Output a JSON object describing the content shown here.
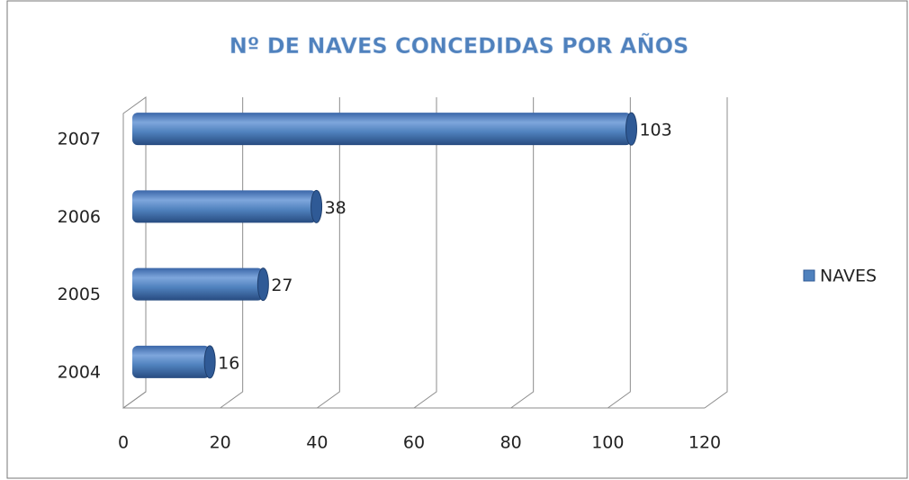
{
  "chart_data": {
    "type": "bar",
    "orientation": "horizontal",
    "title": "Nº DE NAVES CONCEDIDAS POR AÑOS",
    "categories": [
      "2004",
      "2005",
      "2006",
      "2007"
    ],
    "series": [
      {
        "name": "NAVES",
        "color": "#4f81bd",
        "values": [
          16,
          27,
          38,
          103
        ]
      }
    ],
    "xlim": [
      0,
      120
    ],
    "xticks": [
      0,
      20,
      40,
      60,
      80,
      100,
      120
    ],
    "grid": true,
    "legend": "right"
  }
}
